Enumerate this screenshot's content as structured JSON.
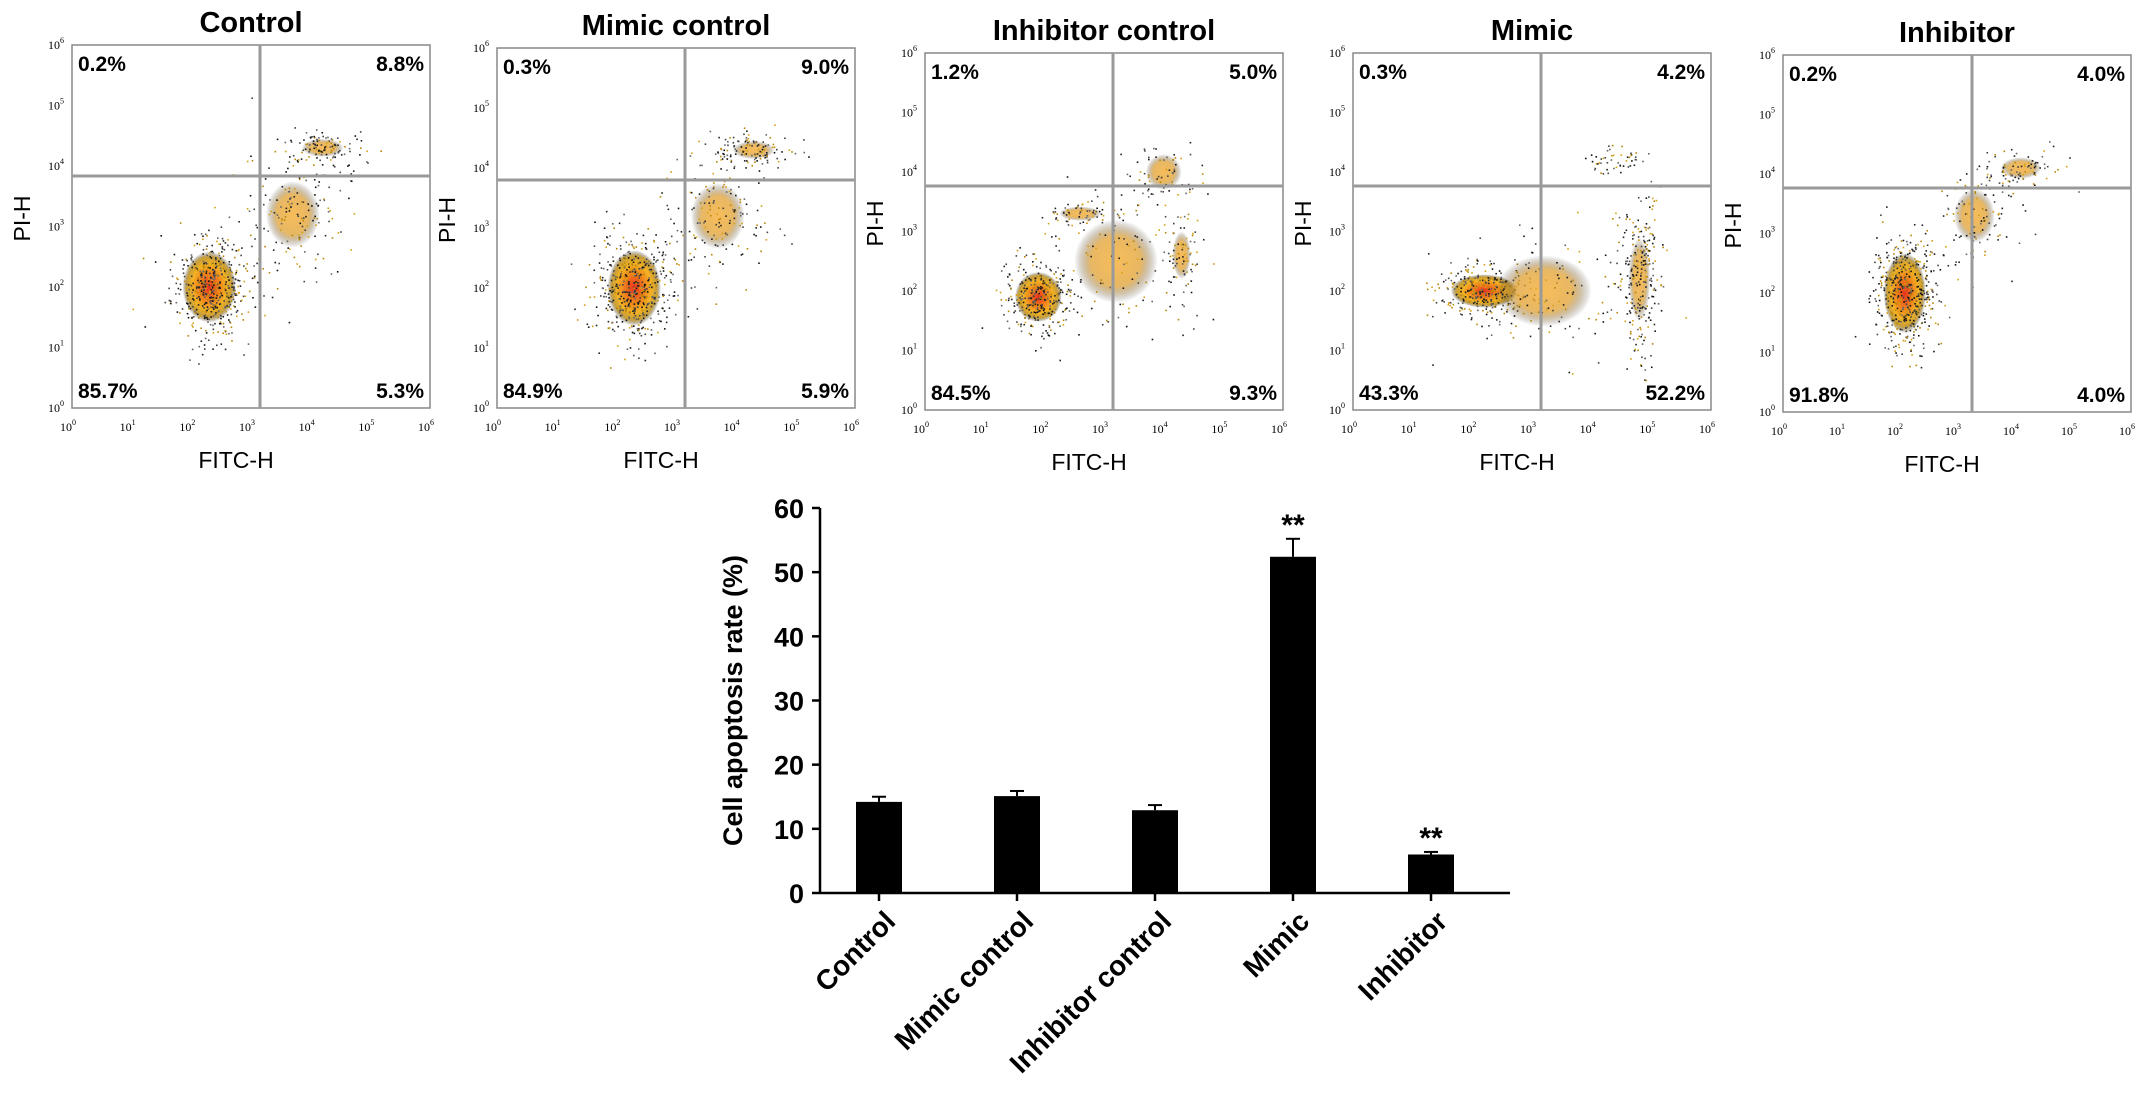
{
  "chart_data": [
    {
      "type": "scatter",
      "title": "Control",
      "xlabel": "FITC-H",
      "ylabel": "PI-H",
      "scale": "log",
      "tick_base": "10",
      "tick_exponents": [
        "0",
        "1",
        "2",
        "3",
        "4",
        "5",
        "6"
      ],
      "quadrants": {
        "upper_left": "0.2%",
        "upper_right": "8.8%",
        "lower_left": "85.7%",
        "lower_right": "5.3%"
      }
    },
    {
      "type": "scatter",
      "title": "Mimic control",
      "xlabel": "FITC-H",
      "ylabel": "PI-H",
      "scale": "log",
      "tick_base": "10",
      "tick_exponents": [
        "0",
        "1",
        "2",
        "3",
        "4",
        "5",
        "6"
      ],
      "quadrants": {
        "upper_left": "0.3%",
        "upper_right": "9.0%",
        "lower_left": "84.9%",
        "lower_right": "5.9%"
      }
    },
    {
      "type": "scatter",
      "title": "Inhibitor control",
      "xlabel": "FITC-H",
      "ylabel": "PI-H",
      "scale": "log",
      "tick_base": "10",
      "tick_exponents": [
        "0",
        "1",
        "2",
        "3",
        "4",
        "5",
        "6"
      ],
      "quadrants": {
        "upper_left": "1.2%",
        "upper_right": "5.0%",
        "lower_left": "84.5%",
        "lower_right": "9.3%"
      }
    },
    {
      "type": "scatter",
      "title": "Mimic",
      "xlabel": "FITC-H",
      "ylabel": "PI-H",
      "scale": "log",
      "tick_base": "10",
      "tick_exponents": [
        "0",
        "1",
        "2",
        "3",
        "4",
        "5",
        "6"
      ],
      "quadrants": {
        "upper_left": "0.3%",
        "upper_right": "4.2%",
        "lower_left": "43.3%",
        "lower_right": "52.2%"
      }
    },
    {
      "type": "scatter",
      "title": "Inhibitor",
      "xlabel": "FITC-H",
      "ylabel": "PI-H",
      "scale": "log",
      "tick_base": "10",
      "tick_exponents": [
        "0",
        "1",
        "2",
        "3",
        "4",
        "5",
        "6"
      ],
      "quadrants": {
        "upper_left": "0.2%",
        "upper_right": "4.0%",
        "lower_left": "91.8%",
        "lower_right": "4.0%"
      }
    },
    {
      "type": "bar",
      "ylabel": "Cell apoptosis rate (%)",
      "ylim": [
        0,
        60
      ],
      "yticks": [
        0,
        10,
        20,
        30,
        40,
        50,
        60
      ],
      "categories": [
        "Control",
        "Mimic control",
        "Inhibitor control",
        "Mimic",
        "Inhibitor"
      ],
      "values": [
        14.2,
        15.1,
        12.9,
        52.4,
        6.0
      ],
      "errors": [
        0.8,
        0.8,
        0.8,
        2.8,
        0.4
      ],
      "significance": [
        "",
        "",
        "",
        "**",
        "**"
      ],
      "bar_color": "#000000"
    }
  ]
}
